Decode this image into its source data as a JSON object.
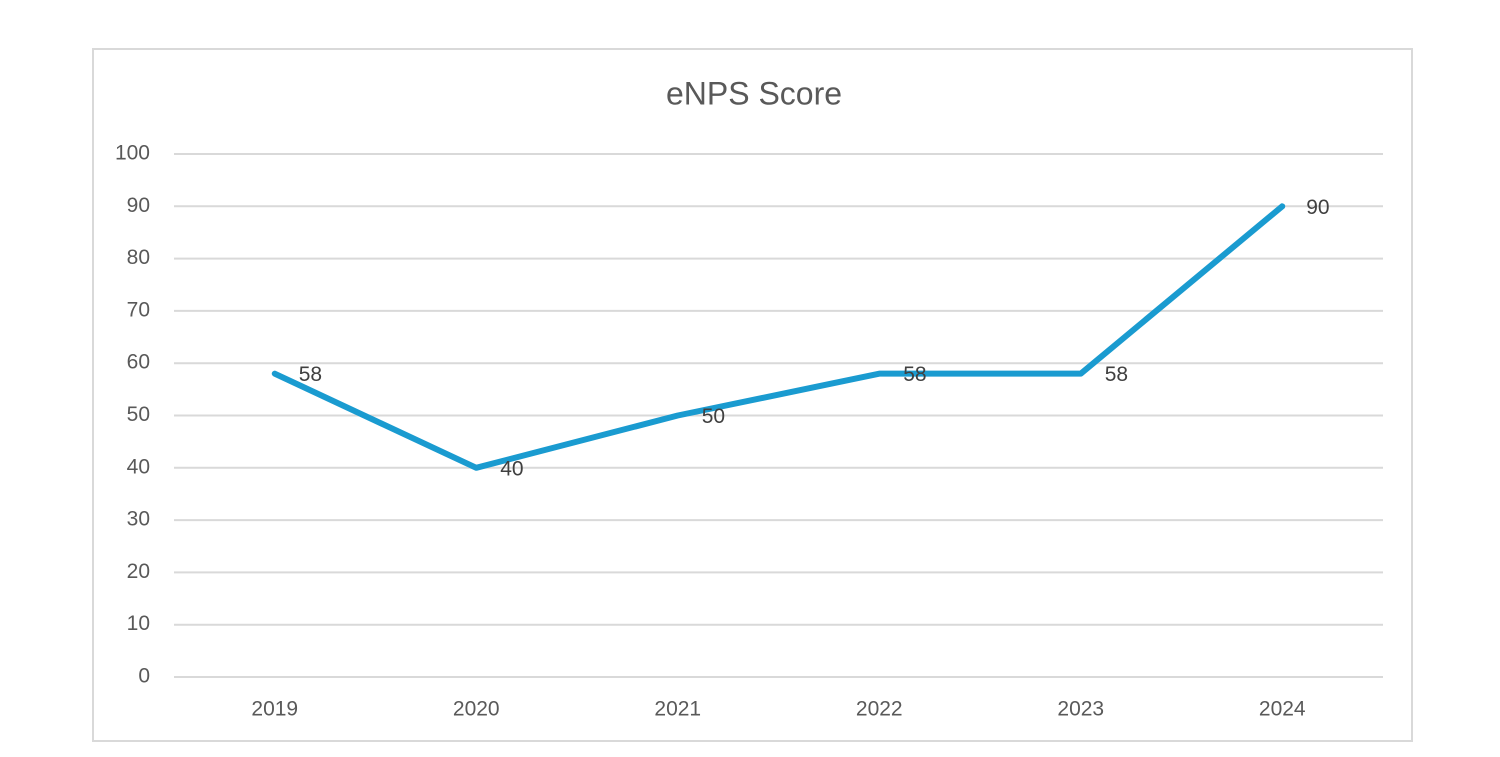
{
  "chart_data": {
    "type": "line",
    "title": "eNPS Score",
    "categories": [
      "2019",
      "2020",
      "2021",
      "2022",
      "2023",
      "2024"
    ],
    "series": [
      {
        "name": "eNPS Score",
        "color": "#1a9bd0",
        "values": [
          58,
          40,
          50,
          58,
          58,
          90
        ]
      }
    ],
    "ylim": [
      0,
      100
    ],
    "yticks": [
      0,
      10,
      20,
      30,
      40,
      50,
      60,
      70,
      80,
      90,
      100
    ],
    "grid": true
  }
}
